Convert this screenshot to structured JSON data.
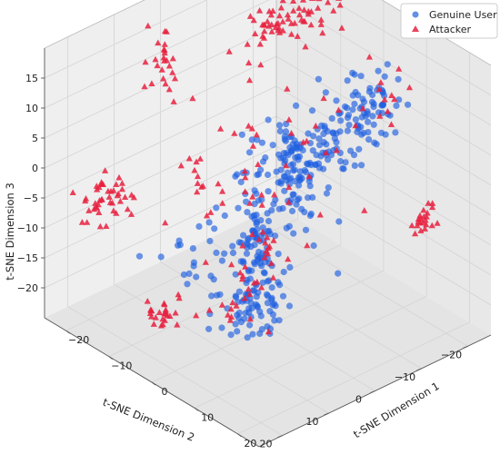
{
  "chart_data": {
    "type": "scatter",
    "projection": "3d",
    "xlabel": "t-SNE Dimension 1",
    "ylabel": "t-SNE Dimension 2",
    "zlabel": "t-SNE Dimension 3",
    "xlim": [
      -25,
      25
    ],
    "ylim": [
      -25,
      25
    ],
    "zlim": [
      -25,
      20
    ],
    "x_ticks": [
      "−20",
      "−10",
      "0",
      "10",
      "20"
    ],
    "y_ticks": [
      "−20",
      "−10",
      "0",
      "10",
      "20"
    ],
    "z_ticks": [
      "−20",
      "−15",
      "−10",
      "−5",
      "0",
      "5",
      "10",
      "15"
    ],
    "grid": true,
    "legend_position": "top-right",
    "series": [
      {
        "name": "Genuine User",
        "color": "#1f5fe0",
        "marker": "circle",
        "clusters": [
          {
            "center": [
              8,
              -10,
              8
            ],
            "spread": [
              2.5,
              6,
              3
            ],
            "count": 90
          },
          {
            "center": [
              4,
              -3,
              1
            ],
            "spread": [
              2,
              3,
              4
            ],
            "count": 70
          },
          {
            "center": [
              2,
              4,
              -8
            ],
            "spread": [
              1.8,
              1.8,
              6
            ],
            "count": 90
          },
          {
            "center": [
              3,
              6,
              -18
            ],
            "spread": [
              2.5,
              2.5,
              3
            ],
            "count": 60
          },
          {
            "center": [
              -3,
              -8,
              -4
            ],
            "spread": [
              4,
              3,
              5
            ],
            "count": 50
          },
          {
            "center": [
              -4,
              9,
              -12
            ],
            "spread": [
              3,
              4,
              3
            ],
            "count": 30
          },
          {
            "center": [
              10,
              -14,
              12
            ],
            "spread": [
              2,
              2,
              2
            ],
            "count": 25
          }
        ]
      },
      {
        "name": "Attacker",
        "color": "#e8213f",
        "marker": "triangle",
        "clusters": [
          {
            "center": [
              -10,
              -15,
              17
            ],
            "spread": [
              2,
              5,
              1.5
            ],
            "count": 70
          },
          {
            "center": [
              -20,
              5,
              12
            ],
            "spread": [
              1.5,
              1.5,
              3
            ],
            "count": 25
          },
          {
            "center": [
              -22,
              15,
              -8
            ],
            "spread": [
              1.5,
              2.5,
              2
            ],
            "count": 45
          },
          {
            "center": [
              -5,
              18,
              -18
            ],
            "spread": [
              1.5,
              2.5,
              1
            ],
            "count": 25
          },
          {
            "center": [
              -3,
              -2,
              1
            ],
            "spread": [
              5,
              9,
              8
            ],
            "count": 45
          },
          {
            "center": [
              20,
              -15,
              -4
            ],
            "spread": [
              1,
              1.5,
              1.5
            ],
            "count": 22
          },
          {
            "center": [
              10,
              -18,
              12
            ],
            "spread": [
              2,
              2,
              2
            ],
            "count": 12
          },
          {
            "center": [
              3,
              3,
              -12
            ],
            "spread": [
              3,
              3,
              3
            ],
            "count": 18
          },
          {
            "center": [
              -12,
              5,
              -5
            ],
            "spread": [
              2,
              2,
              3
            ],
            "count": 12
          },
          {
            "center": [
              5,
              10,
              -14
            ],
            "spread": [
              3,
              4,
              2
            ],
            "count": 18
          }
        ]
      }
    ]
  }
}
